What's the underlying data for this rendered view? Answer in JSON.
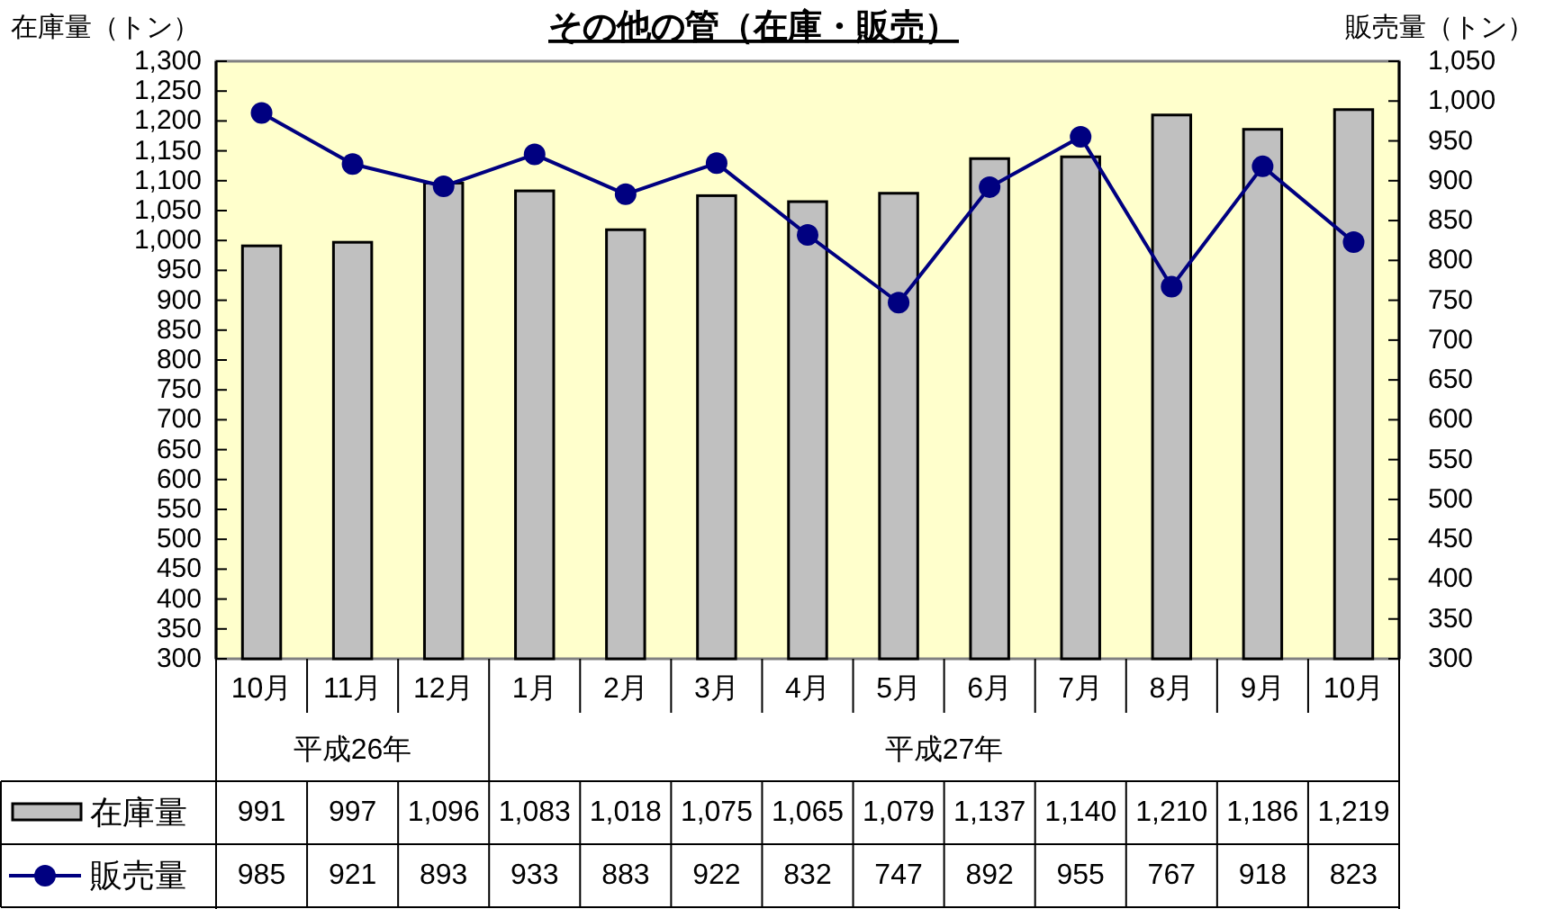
{
  "chart_data": {
    "type": "bar",
    "title": "その他の管（在庫・販売）",
    "ylabel": "在庫量（トン）",
    "y2label": "販売量（トン）",
    "categories": [
      "10月",
      "11月",
      "12月",
      "1月",
      "2月",
      "3月",
      "4月",
      "5月",
      "6月",
      "7月",
      "8月",
      "9月",
      "10月"
    ],
    "annotations": [
      "平成26年",
      "平成27年"
    ],
    "series": [
      {
        "name": "在庫量",
        "color": "#c0c0c0",
        "values": [
          991,
          997,
          1096,
          1083,
          1018,
          1075,
          1065,
          1079,
          1137,
          1140,
          1210,
          1186,
          1219
        ],
        "value_labels": [
          "991",
          "997",
          "1,096",
          "1,083",
          "1,018",
          "1,075",
          "1,065",
          "1,079",
          "1,137",
          "1,140",
          "1,210",
          "1,186",
          "1,219"
        ]
      },
      {
        "name": "販売量",
        "type": "line",
        "axis": "y2",
        "color": "#000080",
        "marker": "circle",
        "line_style": "solid",
        "values": [
          985,
          921,
          893,
          933,
          883,
          922,
          832,
          747,
          892,
          955,
          767,
          918,
          823
        ],
        "value_labels": [
          "985",
          "921",
          "893",
          "933",
          "883",
          "922",
          "832",
          "747",
          "892",
          "955",
          "767",
          "918",
          "823"
        ]
      }
    ],
    "ylim": [
      300,
      1300
    ],
    "yticks": [
      300,
      350,
      400,
      450,
      500,
      550,
      600,
      650,
      700,
      750,
      800,
      850,
      900,
      950,
      {
        "value": 1000,
        "label": "1,000"
      },
      {
        "value": 1050,
        "label": "1,050"
      },
      {
        "value": 1100,
        "label": "1,100"
      },
      {
        "value": 1150,
        "label": "1,150"
      },
      {
        "value": 1200,
        "label": "1,200"
      },
      {
        "value": 1250,
        "label": "1,250"
      },
      {
        "value": 1300,
        "label": "1,300"
      }
    ],
    "y2lim": [
      300,
      1050
    ],
    "y2ticks": [
      300,
      350,
      400,
      450,
      500,
      550,
      600,
      650,
      700,
      750,
      800,
      850,
      900,
      950,
      {
        "value": 1000,
        "label": "1,000"
      },
      {
        "value": 1050,
        "label": "1,050"
      }
    ],
    "legend": "bottom",
    "grid": false
  }
}
